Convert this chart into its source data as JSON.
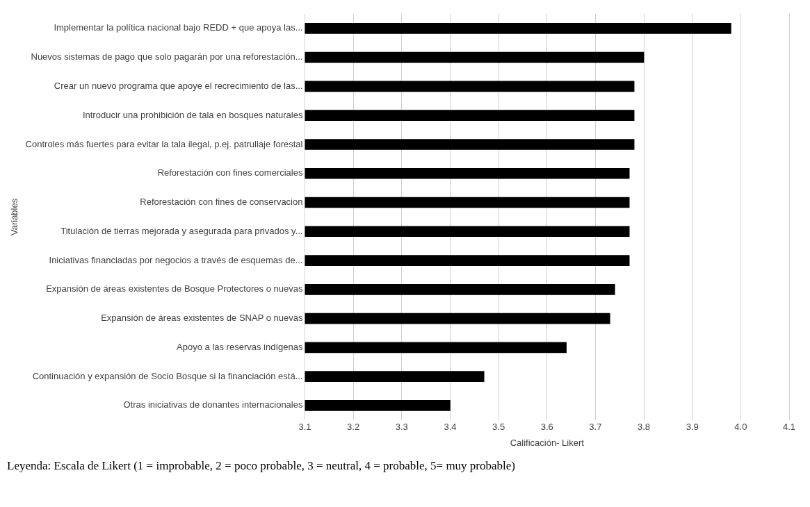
{
  "chart_data": {
    "type": "bar",
    "orientation": "horizontal",
    "categories": [
      "Implementar la política nacional bajo REDD + que apoya las...",
      "Nuevos sistemas de pago que solo pagarán por una reforestación...",
      "Crear un nuevo programa que apoye el recrecimiento de las...",
      "Introducir una prohibición de tala en bosques naturales",
      "Controles más fuertes para evitar la tala ilegal, p.ej. patrullaje forestal",
      "Reforestación con fines comerciales",
      "Reforestación con fines de conservacion",
      "Titulación de tierras mejorada y asegurada para privados y...",
      "Iniciativas financiadas por negocios a través de esquemas de...",
      "Expansión de áreas existentes de Bosque Protectores o nuevas",
      "Expansión de áreas existentes de SNAP o nuevas",
      "Apoyo a las reservas indígenas",
      "Continuación y expansión de Socio Bosque si la financiación está...",
      "Otras iniciativas de donantes internacionales"
    ],
    "values": [
      3.98,
      3.8,
      3.78,
      3.78,
      3.78,
      3.77,
      3.77,
      3.77,
      3.77,
      3.74,
      3.73,
      3.64,
      3.47,
      3.4
    ],
    "color": "#000000",
    "xlim": [
      3.1,
      4.1
    ],
    "xticks": [
      {
        "value": 3.1,
        "label": "3.1"
      },
      {
        "value": 3.2,
        "label": "3.2"
      },
      {
        "value": 3.3,
        "label": "3.3"
      },
      {
        "value": 3.4,
        "label": "3.4"
      },
      {
        "value": 3.5,
        "label": "3.5"
      },
      {
        "value": 3.6,
        "label": "3.6"
      },
      {
        "value": 3.7,
        "label": "3.7"
      },
      {
        "value": 3.8,
        "label": "3.8"
      },
      {
        "value": 3.9,
        "label": "3.9"
      },
      {
        "value": 4.0,
        "label": "4.0"
      },
      {
        "value": 4.1,
        "label": "4.1"
      }
    ],
    "xlabel": "Calificación- Likert",
    "ylabel": "Variables",
    "grid": "x",
    "annotations": [
      "Leyenda: Escala de Likert (1 = improbable, 2 = poco probable, 3 = neutral, 4 = probable, 5= muy probable)"
    ]
  }
}
